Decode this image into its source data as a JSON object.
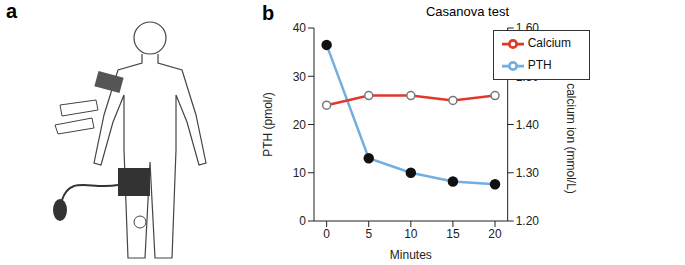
{
  "panel_labels": [
    "a",
    "b"
  ],
  "chart_data": {
    "type": "line",
    "title": "Casanova test",
    "x_label": "Minutes",
    "y_label": "PTH (pmol/)",
    "y2_label": "Free calcium ion (mmol/L)",
    "x": [
      0,
      5,
      10,
      15,
      20
    ],
    "xlim": [
      -1.5,
      21.5
    ],
    "xticks": [
      0,
      5,
      10,
      15,
      20
    ],
    "ylim": [
      0,
      40
    ],
    "yticks": [
      0,
      10,
      20,
      30,
      40
    ],
    "y2lim": [
      1.2,
      1.6
    ],
    "y2ticks": [
      {
        "value": 1.2,
        "label": "1.20"
      },
      {
        "value": 1.3,
        "label": "1.30"
      },
      {
        "value": 1.4,
        "label": "1.40"
      },
      {
        "value": 1.5,
        "label": "1.50"
      },
      {
        "value": 1.6,
        "label": "1.60"
      }
    ],
    "legend": "upper right",
    "grid": false,
    "series": [
      {
        "name": "PTH",
        "color": "#74aee0",
        "marker": "dot",
        "values": [
          36.5,
          13,
          10,
          8.2,
          7.6
        ]
      },
      {
        "name": "Calcium",
        "color": "#e0392b",
        "marker": "ring",
        "axis": "y2",
        "values": [
          1.44,
          1.46,
          1.46,
          1.45,
          1.46
        ]
      }
    ]
  }
}
